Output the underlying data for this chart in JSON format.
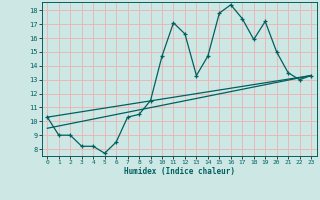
{
  "title": "",
  "xlabel": "Humidex (Indice chaleur)",
  "bg_color": "#cde8e4",
  "grid_color": "#e8b8b8",
  "line_color": "#006060",
  "xlim": [
    -0.5,
    23.5
  ],
  "ylim": [
    7.5,
    18.6
  ],
  "yticks": [
    8,
    9,
    10,
    11,
    12,
    13,
    14,
    15,
    16,
    17,
    18
  ],
  "xticks": [
    0,
    1,
    2,
    3,
    4,
    5,
    6,
    7,
    8,
    9,
    10,
    11,
    12,
    13,
    14,
    15,
    16,
    17,
    18,
    19,
    20,
    21,
    22,
    23
  ],
  "series1_x": [
    0,
    1,
    2,
    3,
    4,
    5,
    6,
    7,
    8,
    9,
    10,
    11,
    12,
    13,
    14,
    15,
    16,
    17,
    18,
    19,
    20,
    21,
    22,
    23
  ],
  "series1_y": [
    10.3,
    9.0,
    9.0,
    8.2,
    8.2,
    7.7,
    8.5,
    10.3,
    10.5,
    11.5,
    14.7,
    17.1,
    16.3,
    13.3,
    14.7,
    17.8,
    18.4,
    17.4,
    15.9,
    17.2,
    15.0,
    13.5,
    13.0,
    13.3
  ],
  "series2_x": [
    0,
    23
  ],
  "series2_y": [
    9.5,
    13.3
  ],
  "series3_x": [
    0,
    23
  ],
  "series3_y": [
    10.3,
    13.3
  ]
}
